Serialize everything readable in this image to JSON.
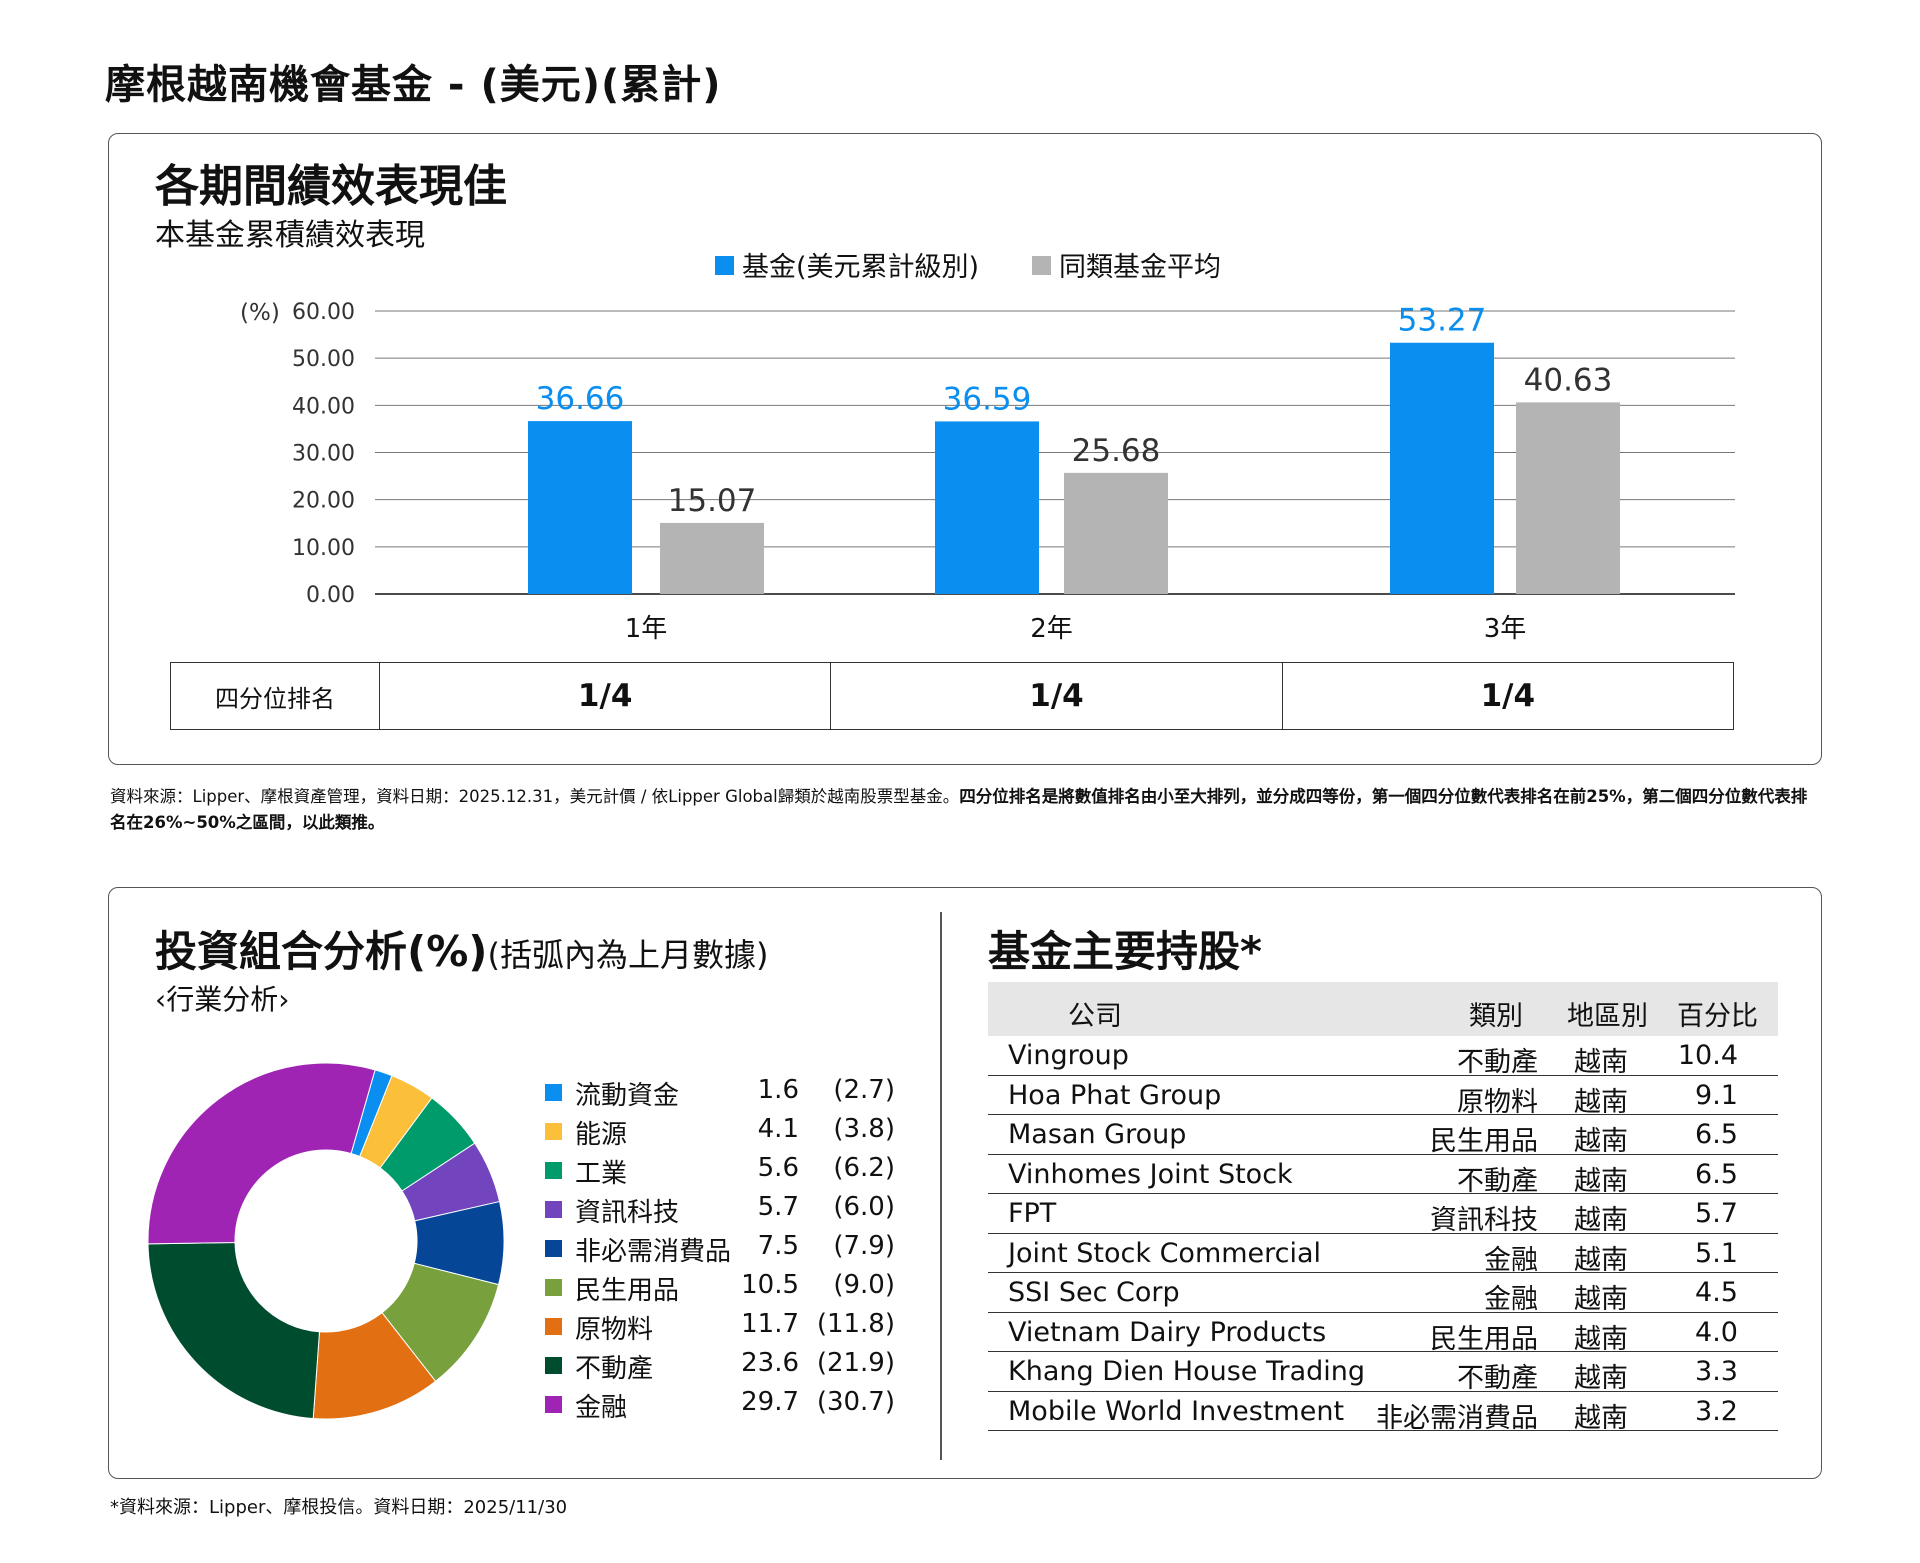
{
  "page_title": "摩根越南機會基金 - (美元)(累計)",
  "performance": {
    "heading": "各期間績效表現佳",
    "subheading": "本基金累積績效表現",
    "quartile": {
      "label": "四分位排名",
      "values": [
        "1/4",
        "1/4",
        "1/4"
      ]
    },
    "footnote_normal": "資料來源：Lipper、摩根資產管理，資料日期：2025.12.31，美元計價 / 依Lipper Global歸類於越南股票型基金。",
    "footnote_bold": "四分位排名是將數值排名由小至大排列，並分成四等份，第一個四分位數代表排名在前25%，第二個四分位數代表排名在26%~50%之區間，以此類推。"
  },
  "chart_data": [
    {
      "type": "bar",
      "categories": [
        "1年",
        "2年",
        "3年"
      ],
      "series": [
        {
          "name": "基金(美元累計級別)",
          "values": [
            36.66,
            36.59,
            53.27
          ],
          "color": "#0a8ff0"
        },
        {
          "name": "同類基金平均",
          "values": [
            15.07,
            25.68,
            40.63
          ],
          "color": "#b4b4b4"
        }
      ],
      "ylabel": "(%)",
      "ylim": [
        0,
        60
      ],
      "yticks": [
        "0.00",
        "10.00",
        "20.00",
        "30.00",
        "40.00",
        "50.00",
        "60.00"
      ],
      "grid": true,
      "legend_position": "top-center"
    },
    {
      "type": "pie",
      "donut": true,
      "categories": [
        "流動資金",
        "能源",
        "工業",
        "資訊科技",
        "非必需消費品",
        "民生用品",
        "原物料",
        "不動產",
        "金融"
      ],
      "values": [
        1.6,
        4.1,
        5.6,
        5.7,
        7.5,
        10.5,
        11.7,
        23.6,
        29.7
      ],
      "previous_values": [
        2.7,
        3.8,
        6.2,
        6.0,
        7.9,
        9.0,
        11.8,
        21.9,
        30.7
      ],
      "colors": [
        "#0a8ff0",
        "#fcbf3a",
        "#009b6a",
        "#7245be",
        "#054696",
        "#78a03c",
        "#e26f12",
        "#004c2e",
        "#a024b4"
      ]
    }
  ],
  "allocation": {
    "heading": "投資組合分析(%)",
    "heading_note": "(括弧內為上月數據)",
    "subheading": "‹行業分析›",
    "legend": [
      {
        "name": "流動資金",
        "current": "1.6",
        "previous": "(2.7)"
      },
      {
        "name": "能源",
        "current": "4.1",
        "previous": "(3.8)"
      },
      {
        "name": "工業",
        "current": "5.6",
        "previous": "(6.2)"
      },
      {
        "name": "資訊科技",
        "current": "5.7",
        "previous": "(6.0)"
      },
      {
        "name": "非必需消費品",
        "current": "7.5",
        "previous": "(7.9)"
      },
      {
        "name": "民生用品",
        "current": "10.5",
        "previous": "(9.0)"
      },
      {
        "name": "原物料",
        "current": "11.7",
        "previous": "(11.8)"
      },
      {
        "name": "不動產",
        "current": "23.6",
        "previous": "(21.9)"
      },
      {
        "name": "金融",
        "current": "29.7",
        "previous": "(30.7)"
      }
    ]
  },
  "holdings": {
    "heading": "基金主要持股*",
    "columns": {
      "company": "公司",
      "type": "類別",
      "region": "地區別",
      "pct": "百分比"
    },
    "rows": [
      {
        "company": "Vingroup",
        "type": "不動產",
        "region": "越南",
        "pct": "10.4"
      },
      {
        "company": "Hoa Phat Group",
        "type": "原物料",
        "region": "越南",
        "pct": "9.1"
      },
      {
        "company": "Masan Group",
        "type": "民生用品",
        "region": "越南",
        "pct": "6.5"
      },
      {
        "company": "Vinhomes Joint Stock",
        "type": "不動產",
        "region": "越南",
        "pct": "6.5"
      },
      {
        "company": "FPT",
        "type": "資訊科技",
        "region": "越南",
        "pct": "5.7"
      },
      {
        "company": "Joint Stock Commercial",
        "type": "金融",
        "region": "越南",
        "pct": "5.1"
      },
      {
        "company": "SSI Sec Corp",
        "type": "金融",
        "region": "越南",
        "pct": "4.5"
      },
      {
        "company": "Vietnam Dairy Products",
        "type": "民生用品",
        "region": "越南",
        "pct": "4.0"
      },
      {
        "company": "Khang Dien House Trading",
        "type": "不動產",
        "region": "越南",
        "pct": "3.3"
      },
      {
        "company": "Mobile World Investment",
        "type": "非必需消費品",
        "region": "越南",
        "pct": "3.2"
      }
    ]
  },
  "source_note": "*資料來源：Lipper、摩根投信。資料日期：2025/11/30"
}
